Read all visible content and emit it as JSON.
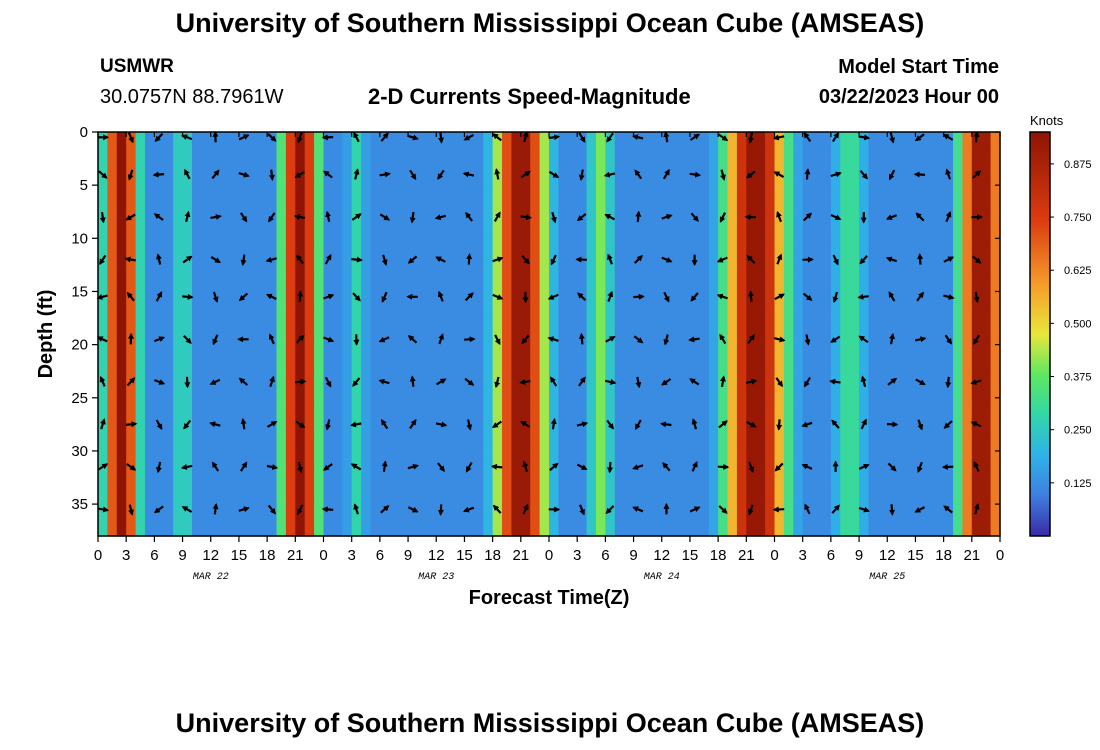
{
  "header": {
    "title_top": "University of Southern Mississippi Ocean Cube (AMSEAS)",
    "title_bottom": "University of Southern Mississippi Ocean Cube (AMSEAS)",
    "station": "USMWR",
    "coords": "30.0757N  88.7961W",
    "plot_title": "2-D Currents Speed-Magnitude",
    "model_start_label": "Model Start Time",
    "model_start_value": "03/22/2023 Hour 00"
  },
  "colors": {
    "dark_blue": "#3b2aa8",
    "blue": "#3e7fe0",
    "cyan": "#2fb2e8",
    "teal": "#32d6a8",
    "green": "#5ee860",
    "yellow": "#e8e63a",
    "orange": "#f59e2a",
    "red": "#dc3c10",
    "dark_red": "#8e1404"
  },
  "chart_data": {
    "type": "heatmap",
    "title": "2-D Currents Speed-Magnitude",
    "xlabel": "Forecast Time(Z)",
    "ylabel": "Depth (ft)",
    "x_range_hours": [
      0,
      96
    ],
    "y_range_ft": [
      0,
      38
    ],
    "x_ticks": [
      0,
      3,
      6,
      9,
      12,
      15,
      18,
      21,
      24,
      27,
      30,
      33,
      36,
      39,
      42,
      45,
      48,
      51,
      54,
      57,
      60,
      63,
      66,
      69,
      72,
      75,
      78,
      81,
      84,
      87,
      90,
      93,
      96
    ],
    "x_tick_labels": [
      "0",
      "3",
      "6",
      "9",
      "12",
      "15",
      "18",
      "21",
      "0",
      "3",
      "6",
      "9",
      "12",
      "15",
      "18",
      "21",
      "0",
      "3",
      "6",
      "9",
      "12",
      "15",
      "18",
      "21",
      "0",
      "3",
      "6",
      "9",
      "12",
      "15",
      "18",
      "21",
      "0"
    ],
    "date_labels": [
      {
        "hour": 12,
        "label": "MAR 22"
      },
      {
        "hour": 36,
        "label": "MAR 23"
      },
      {
        "hour": 60,
        "label": "MAR 24"
      },
      {
        "hour": 84,
        "label": "MAR 25"
      }
    ],
    "y_ticks": [
      0,
      5,
      10,
      15,
      20,
      25,
      30,
      35
    ],
    "colorbar": {
      "label": "Knots",
      "range": [
        0,
        0.95
      ],
      "ticks": [
        0.125,
        0.25,
        0.375,
        0.5,
        0.625,
        0.75,
        0.875
      ],
      "tick_labels": [
        "0.125",
        "0.250",
        "0.375",
        "0.500",
        "0.625",
        "0.750",
        "0.875"
      ]
    },
    "speed_peaks_knots": [
      {
        "hour": 2.5,
        "peak": 0.95,
        "width_hours": 1.8
      },
      {
        "hour": 9,
        "peak": 0.3,
        "width_hours": 1.2
      },
      {
        "hour": 21.5,
        "peak": 0.95,
        "width_hours": 2.0
      },
      {
        "hour": 27.5,
        "peak": 0.28,
        "width_hours": 1.3
      },
      {
        "hour": 45,
        "peak": 0.95,
        "width_hours": 2.8
      },
      {
        "hour": 53.5,
        "peak": 0.4,
        "width_hours": 1.4
      },
      {
        "hour": 70,
        "peak": 0.95,
        "width_hours": 3.4
      },
      {
        "hour": 80,
        "peak": 0.32,
        "width_hours": 2.0
      },
      {
        "hour": 94,
        "peak": 0.95,
        "width_hours": 2.4
      }
    ],
    "background_knots": 0.12,
    "vector_grid": {
      "hours": [
        0,
        3,
        6,
        9,
        12,
        15,
        18,
        21,
        24,
        27,
        30,
        33,
        36,
        39,
        42,
        45,
        48,
        51,
        54,
        57,
        60,
        63,
        66,
        69,
        72,
        75,
        78,
        81,
        84,
        87,
        90,
        93
      ],
      "depths_ft": [
        0.5,
        4,
        8,
        12,
        15.5,
        19.5,
        23.5,
        27.5,
        31.5,
        35.5
      ]
    }
  }
}
